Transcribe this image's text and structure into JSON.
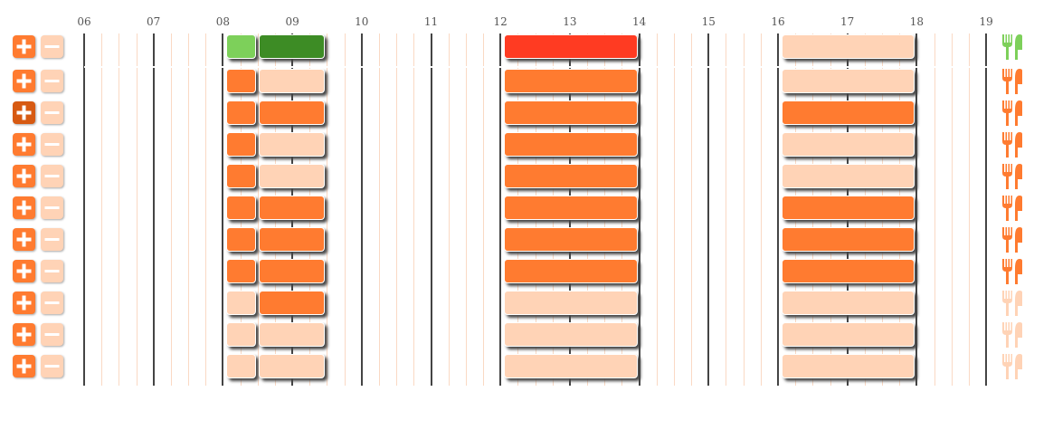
{
  "hours": [
    "06",
    "07",
    "08",
    "09",
    "10",
    "11",
    "12",
    "13",
    "14",
    "15",
    "16",
    "17",
    "18",
    "19"
  ],
  "colors": {
    "empty": "#ffd3b6",
    "booked": "#ff7b30",
    "selected_light": "#7dd05a",
    "selected_dark": "#3d8c25",
    "alert": "#ff3b22",
    "meal_active": "#ff7b30",
    "meal_inactive": "#ffd3b6",
    "meal_selected": "#7dd05a",
    "plus": "#ff7b30",
    "plus_active": "#d75a12",
    "minus": "#ffd3b6"
  },
  "rows": [
    {
      "plus": "normal",
      "meal": "meal_selected",
      "slots": [
        "selected_light",
        "selected_dark",
        "alert",
        "empty"
      ]
    },
    {
      "plus": "normal",
      "meal": "meal_active",
      "slots": [
        "booked",
        "empty",
        "booked",
        "empty"
      ]
    },
    {
      "plus": "active",
      "meal": "meal_active",
      "slots": [
        "booked",
        "booked",
        "booked",
        "booked"
      ]
    },
    {
      "plus": "normal",
      "meal": "meal_active",
      "slots": [
        "booked",
        "empty",
        "booked",
        "empty"
      ]
    },
    {
      "plus": "normal",
      "meal": "meal_active",
      "slots": [
        "booked",
        "empty",
        "booked",
        "empty"
      ]
    },
    {
      "plus": "normal",
      "meal": "meal_active",
      "slots": [
        "booked",
        "booked",
        "booked",
        "booked"
      ]
    },
    {
      "plus": "normal",
      "meal": "meal_active",
      "slots": [
        "booked",
        "booked",
        "booked",
        "booked"
      ]
    },
    {
      "plus": "normal",
      "meal": "meal_active",
      "slots": [
        "booked",
        "booked",
        "booked",
        "booked"
      ]
    },
    {
      "plus": "normal",
      "meal": "meal_inactive",
      "slots": [
        "empty",
        "booked",
        "empty",
        "empty"
      ]
    },
    {
      "plus": "normal",
      "meal": "meal_inactive",
      "slots": [
        "empty",
        "empty",
        "empty",
        "empty"
      ]
    },
    {
      "plus": "normal",
      "meal": "meal_inactive",
      "slots": [
        "empty",
        "empty",
        "empty",
        "empty"
      ]
    }
  ],
  "icons": {
    "plus": "plus-icon",
    "minus": "minus-icon",
    "meal": "cutlery-icon"
  }
}
